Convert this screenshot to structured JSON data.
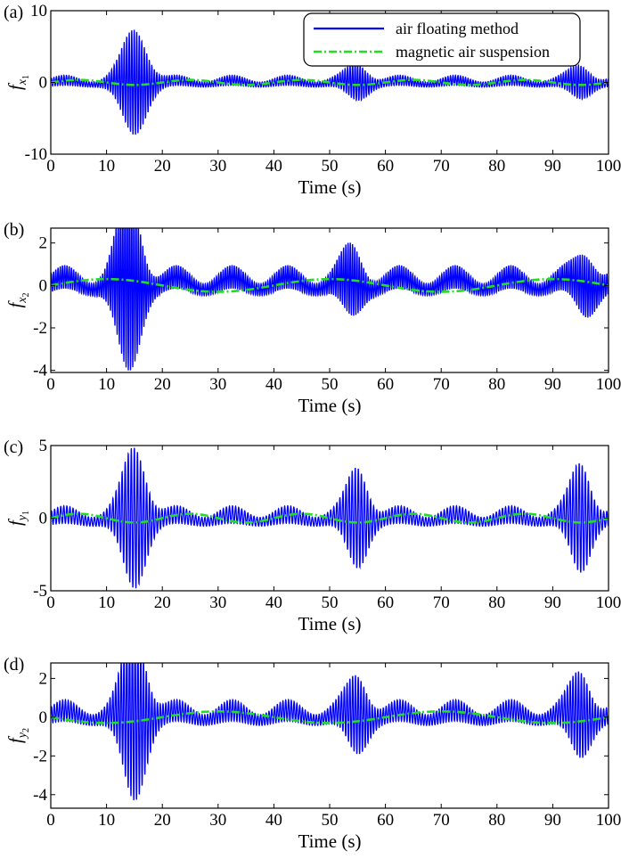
{
  "colors": {
    "series_1": "#0000ff",
    "series_2": "#22dd22",
    "axes": "#000000",
    "background": "#ffffff"
  },
  "legend": {
    "placement": "top-right of panel (a)",
    "entries": [
      "air floating method",
      "magnetic air suspension"
    ]
  },
  "chart_data": [
    {
      "panel_label": "(a)",
      "type": "line",
      "ylabel": "f_x1",
      "ylabel_main": "f",
      "ylabel_sub": "x",
      "ylabel_subsub": "1",
      "xlabel": "Time (s)",
      "xlim": [
        0,
        100
      ],
      "ylim": [
        -10,
        10
      ],
      "xticks": [
        "0",
        "10",
        "20",
        "30",
        "40",
        "50",
        "60",
        "70",
        "80",
        "90",
        "100"
      ],
      "yticks": [
        "-10",
        "0",
        "10"
      ],
      "ytick_values": [
        -10,
        0,
        10
      ],
      "grid": false,
      "series": [
        {
          "name": "air floating method",
          "description": "oscillation with bursts near t=15, 55, 95",
          "envelope": {
            "base": 0.7,
            "bursts": [
              {
                "t": 15,
                "amp": 6.8,
                "width": 3
              },
              {
                "t": 55,
                "amp": 2.0,
                "width": 2.5
              },
              {
                "t": 95,
                "amp": 1.8,
                "width": 2.5
              }
            ]
          },
          "carrier_period": 0.45,
          "slow_component": {
            "amp": 0.3,
            "period": 10
          }
        },
        {
          "name": "magnetic air suspension",
          "slow_sine": {
            "amp": 0.35,
            "period": 20,
            "phase": 0
          }
        }
      ]
    },
    {
      "panel_label": "(b)",
      "type": "line",
      "ylabel": "f_x2",
      "ylabel_main": "f",
      "ylabel_sub": "x",
      "ylabel_subsub": "2",
      "xlabel": "Time (s)",
      "xlim": [
        0,
        100
      ],
      "ylim": [
        -4.1,
        2.7
      ],
      "xticks": [
        "0",
        "10",
        "20",
        "30",
        "40",
        "50",
        "60",
        "70",
        "80",
        "90",
        "100"
      ],
      "yticks": [
        "-4",
        "-2",
        "0",
        "2"
      ],
      "ytick_values": [
        -4,
        -2,
        0,
        2
      ],
      "grid": false,
      "series": [
        {
          "name": "air floating method",
          "envelope": {
            "base": 0.55,
            "bursts": [
              {
                "t": 14,
                "amp": 3.8,
                "width": 2.8
              },
              {
                "t": 54,
                "amp": 1.2,
                "width": 2.5
              },
              {
                "t": 96,
                "amp": 1.1,
                "width": 2.5
              }
            ]
          },
          "carrier_period": 0.4,
          "slow_component": {
            "amp": 0.3,
            "period": 10
          },
          "offset": 0.1
        },
        {
          "name": "magnetic air suspension",
          "slow_sine": {
            "amp": 0.3,
            "period": 40,
            "phase": 0.0
          }
        }
      ]
    },
    {
      "panel_label": "(c)",
      "type": "line",
      "ylabel": "f_y1",
      "ylabel_main": "f",
      "ylabel_sub": "y",
      "ylabel_subsub": "1",
      "xlabel": "Time (s)",
      "xlim": [
        0,
        100
      ],
      "ylim": [
        -5,
        5
      ],
      "xticks": [
        "0",
        "10",
        "20",
        "30",
        "40",
        "50",
        "60",
        "70",
        "80",
        "90",
        "100"
      ],
      "yticks": [
        "-5",
        "0",
        "5"
      ],
      "ytick_values": [
        -5,
        0,
        5
      ],
      "grid": false,
      "series": [
        {
          "name": "air floating method",
          "envelope": {
            "base": 0.6,
            "bursts": [
              {
                "t": 15,
                "amp": 4.4,
                "width": 2.8
              },
              {
                "t": 55,
                "amp": 3.0,
                "width": 2.5
              },
              {
                "t": 95,
                "amp": 3.3,
                "width": 2.5
              }
            ]
          },
          "carrier_period": 0.55,
          "slow_component": {
            "amp": 0.25,
            "period": 10
          }
        },
        {
          "name": "magnetic air suspension",
          "slow_sine": {
            "amp": 0.3,
            "period": 20,
            "phase": 0
          }
        }
      ]
    },
    {
      "panel_label": "(d)",
      "type": "line",
      "ylabel": "f_y2",
      "ylabel_main": "f",
      "ylabel_sub": "y",
      "ylabel_subsub": "2",
      "xlabel": "Time (s)",
      "xlim": [
        0,
        100
      ],
      "ylim": [
        -4.7,
        2.8
      ],
      "xticks": [
        "0",
        "10",
        "20",
        "30",
        "40",
        "50",
        "60",
        "70",
        "80",
        "90",
        "100"
      ],
      "yticks": [
        "-4",
        "-2",
        "0",
        "2"
      ],
      "ytick_values": [
        -4,
        -2,
        0,
        2
      ],
      "grid": false,
      "series": [
        {
          "name": "air floating method",
          "envelope": {
            "base": 0.55,
            "bursts": [
              {
                "t": 15,
                "amp": 4.0,
                "width": 2.8
              },
              {
                "t": 55,
                "amp": 1.6,
                "width": 2.5
              },
              {
                "t": 95,
                "amp": 1.8,
                "width": 2.5
              }
            ]
          },
          "carrier_period": 0.5,
          "slow_component": {
            "amp": 0.25,
            "period": 10
          },
          "offset": 0.1
        },
        {
          "name": "magnetic air suspension",
          "slow_sine": {
            "amp": 0.3,
            "period": 40,
            "phase": 3.14159
          }
        }
      ]
    }
  ]
}
